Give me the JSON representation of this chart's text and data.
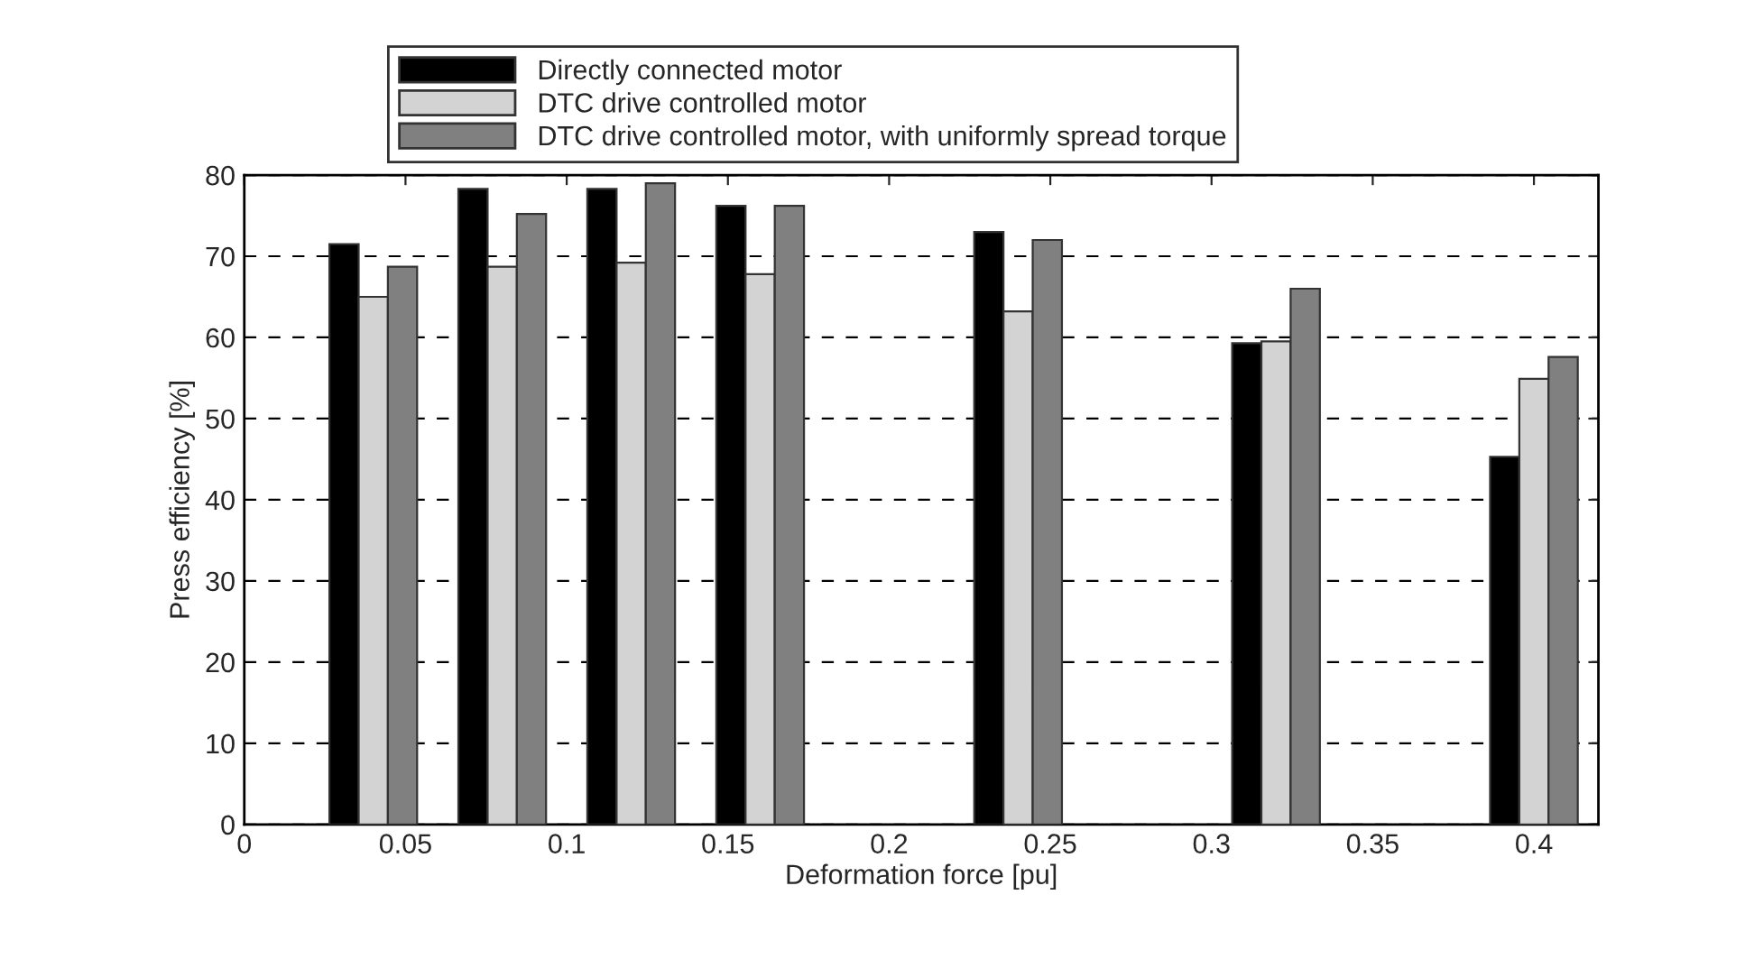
{
  "chart_data": {
    "type": "bar",
    "xlabel": "Deformation force [pu]",
    "ylabel": "Press efficiency [%]",
    "x": [
      0.04,
      0.08,
      0.12,
      0.16,
      0.24,
      0.32,
      0.4
    ],
    "series": [
      {
        "name": "Directly connected motor",
        "color": "#000000",
        "values": [
          71.5,
          78.3,
          78.3,
          76.2,
          73,
          59.3,
          45.3
        ]
      },
      {
        "name": "DTC drive controlled motor",
        "color": "#d3d3d3",
        "values": [
          65,
          68.7,
          69.2,
          67.8,
          63.2,
          59.5,
          54.9
        ]
      },
      {
        "name": "DTC drive controlled motor, with uniformly spread torque",
        "color": "#808080",
        "values": [
          68.7,
          75.2,
          79,
          76.2,
          72,
          66,
          57.6
        ]
      }
    ],
    "xlim": [
      0,
      0.42
    ],
    "xticks": [
      0,
      0.05,
      0.1,
      0.15,
      0.2,
      0.25,
      0.3,
      0.35,
      0.4
    ],
    "ylim": [
      0,
      80
    ],
    "yticks": [
      0,
      10,
      20,
      30,
      40,
      50,
      60,
      70,
      80
    ],
    "grid": "y",
    "legend": "top"
  }
}
